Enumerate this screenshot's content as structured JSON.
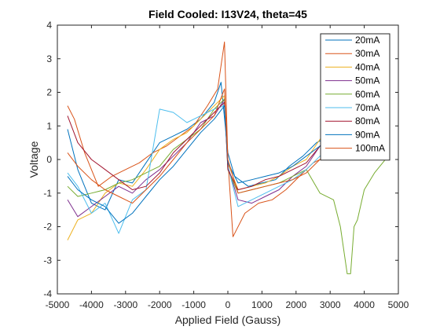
{
  "chart_data": {
    "type": "line",
    "title": "Field Cooled: I13V24, theta=45",
    "xlabel": "Applied Field (Gauss)",
    "ylabel": "Voltage",
    "xlim": [
      -5000,
      5000
    ],
    "ylim": [
      -4,
      4
    ],
    "xticks": [
      -5000,
      -4000,
      -3000,
      -2000,
      -1000,
      0,
      1000,
      2000,
      3000,
      4000,
      5000
    ],
    "yticks": [
      -4,
      -3,
      -2,
      -1,
      0,
      1,
      2,
      3,
      4
    ],
    "grid": false,
    "legend_location": "top-right",
    "series": [
      {
        "name": "20mA",
        "color": "#0072BD",
        "x": [
          -4700,
          -4400,
          -4000,
          -3600,
          -3200,
          -2800,
          -2400,
          -2000,
          -1600,
          -1200,
          -800,
          -400,
          -200,
          0,
          200,
          600,
          1000,
          1400,
          1800,
          2200,
          2600,
          3000,
          3400,
          3800,
          4200,
          4700
        ],
        "y": [
          0.9,
          -0.3,
          -1.3,
          -1.5,
          -0.6,
          -0.7,
          -0.1,
          0.5,
          0.7,
          0.9,
          1.2,
          1.7,
          2.3,
          0.2,
          -0.5,
          -0.8,
          -0.7,
          -0.6,
          -0.2,
          0.1,
          0.5,
          0.7,
          0.8,
          1.2,
          0.9,
          1.0
        ]
      },
      {
        "name": "30mA",
        "color": "#D95319",
        "x": [
          -4700,
          -4500,
          -4200,
          -3800,
          -3400,
          -3000,
          -2600,
          -2200,
          -1800,
          -1400,
          -1000,
          -600,
          -300,
          -100,
          0,
          150,
          500,
          900,
          1300,
          1700,
          2100,
          2500,
          2900,
          3300,
          3700,
          4100,
          4500,
          4700
        ],
        "y": [
          1.6,
          1.2,
          0.2,
          -0.8,
          -0.5,
          -0.3,
          -0.1,
          0.2,
          0.4,
          0.7,
          1.0,
          1.6,
          2.1,
          3.5,
          0.0,
          -2.3,
          -1.6,
          -1.3,
          -1.2,
          -0.9,
          -0.5,
          -0.1,
          0.1,
          0.4,
          0.6,
          0.5,
          0.3,
          0.2
        ]
      },
      {
        "name": "40mA",
        "color": "#EDB120",
        "x": [
          -4700,
          -4400,
          -4000,
          -3600,
          -3200,
          -2800,
          -2400,
          -2000,
          -1600,
          -1200,
          -800,
          -400,
          -100,
          0,
          300,
          700,
          1100,
          1500,
          1900,
          2300,
          2700,
          3100,
          3500,
          3900,
          4300,
          4700
        ],
        "y": [
          -2.4,
          -1.8,
          -1.6,
          -1.0,
          -0.7,
          -0.8,
          -0.3,
          0.3,
          0.6,
          0.8,
          1.2,
          1.6,
          1.9,
          -0.1,
          -0.9,
          -0.8,
          -0.7,
          -0.5,
          -0.2,
          0.0,
          0.6,
          1.0,
          1.2,
          0.8,
          0.6,
          0.3
        ]
      },
      {
        "name": "50mA",
        "color": "#7E2F8E",
        "x": [
          -4700,
          -4400,
          -4000,
          -3600,
          -3200,
          -2800,
          -2400,
          -2000,
          -1600,
          -1200,
          -800,
          -400,
          -100,
          0,
          300,
          700,
          1100,
          1500,
          1900,
          2300,
          2700,
          3100,
          3500,
          3900,
          4300,
          4700
        ],
        "y": [
          -1.2,
          -1.7,
          -1.4,
          -1.1,
          -0.8,
          -1.0,
          -0.6,
          -0.3,
          0.1,
          0.5,
          1.1,
          1.3,
          1.8,
          -0.2,
          -1.2,
          -1.3,
          -1.1,
          -0.9,
          -0.5,
          -0.2,
          0.4,
          0.8,
          1.0,
          0.7,
          0.5,
          0.6
        ]
      },
      {
        "name": "60mA",
        "color": "#77AC30",
        "x": [
          -4700,
          -4400,
          -4000,
          -3600,
          -3200,
          -2800,
          -2400,
          -2000,
          -1600,
          -1200,
          -800,
          -400,
          -100,
          0,
          300,
          700,
          1100,
          1500,
          1900,
          2300,
          2700,
          3100,
          3300,
          3500,
          3600,
          3700,
          3800,
          4000,
          4300,
          4700
        ],
        "y": [
          -0.8,
          -1.1,
          -1.0,
          -0.9,
          -0.7,
          -0.6,
          -0.4,
          -0.2,
          0.3,
          0.6,
          0.9,
          1.5,
          1.8,
          -0.3,
          -1.0,
          -0.9,
          -0.8,
          -0.7,
          -0.5,
          -0.3,
          -1.0,
          -1.2,
          -2.0,
          -3.4,
          -3.4,
          -2.0,
          -1.8,
          -0.9,
          -0.4,
          0.1
        ]
      },
      {
        "name": "70mA",
        "color": "#4DBEEE",
        "x": [
          -4700,
          -4400,
          -4000,
          -3600,
          -3200,
          -2800,
          -2400,
          -2000,
          -1600,
          -1200,
          -800,
          -400,
          -100,
          0,
          300,
          700,
          1100,
          1500,
          1900,
          2300,
          2700,
          3100,
          3500,
          3900,
          4300,
          4700
        ],
        "y": [
          -0.4,
          -0.8,
          -1.6,
          -1.3,
          -2.2,
          -1.2,
          -0.9,
          1.5,
          1.4,
          1.1,
          1.3,
          1.5,
          1.6,
          -0.2,
          -1.4,
          -1.2,
          -1.0,
          -0.8,
          -0.6,
          -0.3,
          0.1,
          0.3,
          0.5,
          0.8,
          0.6,
          0.4
        ]
      },
      {
        "name": "80mA",
        "color": "#A2142F",
        "x": [
          -4700,
          -4400,
          -4000,
          -3600,
          -3200,
          -2800,
          -2400,
          -2000,
          -1600,
          -1200,
          -800,
          -400,
          -100,
          0,
          300,
          700,
          1100,
          1500,
          1900,
          2300,
          2700,
          3100,
          3500,
          3900,
          4300,
          4700
        ],
        "y": [
          1.3,
          0.5,
          0.0,
          -0.3,
          -0.6,
          -0.9,
          -0.8,
          -0.4,
          0.2,
          0.6,
          1.0,
          1.4,
          1.7,
          -0.3,
          -0.9,
          -0.8,
          -0.6,
          -0.5,
          -0.3,
          -0.1,
          0.4,
          0.8,
          1.0,
          1.4,
          0.9,
          0.5
        ]
      },
      {
        "name": "90mA",
        "color": "#0072BD",
        "x": [
          -4700,
          -4400,
          -4000,
          -3600,
          -3200,
          -2800,
          -2400,
          -2000,
          -1600,
          -1200,
          -800,
          -400,
          -100,
          0,
          300,
          700,
          1100,
          1500,
          1900,
          2300,
          2700,
          3100,
          3500,
          3900,
          4300,
          4700
        ],
        "y": [
          -0.5,
          -0.9,
          -1.2,
          -1.4,
          -1.9,
          -1.6,
          -1.1,
          -0.6,
          -0.2,
          0.3,
          0.8,
          1.2,
          1.6,
          -0.1,
          -0.7,
          -0.6,
          -0.5,
          -0.4,
          -0.2,
          0.1,
          0.4,
          0.6,
          0.9,
          1.1,
          0.8,
          0.6
        ]
      },
      {
        "name": "100mA",
        "color": "#D95319",
        "x": [
          -4700,
          -4400,
          -4000,
          -3600,
          -3200,
          -2800,
          -2400,
          -2000,
          -1600,
          -1200,
          -800,
          -400,
          -100,
          0,
          300,
          700,
          1100,
          1500,
          1900,
          2300,
          2700,
          3100,
          3500,
          3900,
          4300,
          4700
        ],
        "y": [
          0.2,
          -0.2,
          -0.6,
          -0.9,
          -1.1,
          -1.3,
          -0.9,
          -0.5,
          0.0,
          0.5,
          0.9,
          1.3,
          2.1,
          0.0,
          -1.0,
          -0.9,
          -0.8,
          -0.7,
          -0.6,
          -0.4,
          0.0,
          0.3,
          0.5,
          0.6,
          0.4,
          0.3
        ]
      }
    ]
  }
}
